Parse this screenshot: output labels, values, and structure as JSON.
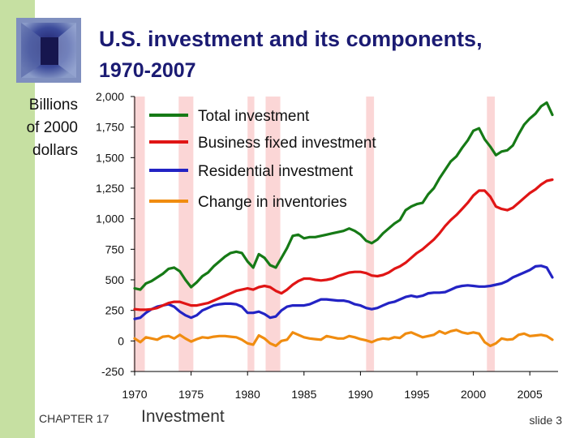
{
  "slide": {
    "title_line1": "U.S. investment and its components,",
    "title_line2": "1970-2007",
    "chapter": "CHAPTER 17",
    "topic": "Investment",
    "slide_number": "slide 3"
  },
  "colors": {
    "accent_bar": "#c6e0a2",
    "title": "#1b1b73",
    "recession": "#fbd6d6",
    "total": "#167a16",
    "business": "#e01515",
    "residential": "#2323c4",
    "inventories": "#f08c10"
  },
  "chart_data": {
    "type": "line",
    "title": "U.S. investment and its components, 1970-2007",
    "ylabel_lines": [
      "Billions",
      "of 2000",
      "dollars"
    ],
    "xlabel": "",
    "xlim": [
      1970,
      2007.5
    ],
    "ylim": [
      -250,
      2000
    ],
    "x_ticks": [
      1970,
      1975,
      1980,
      1985,
      1990,
      1995,
      2000,
      2005
    ],
    "x_tick_labels": [
      "1970",
      "1975",
      "1980",
      "1985",
      "1990",
      "1995",
      "2000",
      "2005"
    ],
    "y_ticks": [
      2000,
      1750,
      1500,
      1250,
      1000,
      750,
      500,
      250,
      0,
      -250
    ],
    "y_tick_labels": [
      "2,000",
      "1,750",
      "1,500",
      "1,250",
      "1,000",
      "750",
      "500",
      "250",
      "0",
      "-250"
    ],
    "recession_bands": [
      [
        1969.9,
        1970.9
      ],
      [
        1973.9,
        1975.2
      ],
      [
        1980.0,
        1980.6
      ],
      [
        1981.6,
        1982.9
      ],
      [
        1990.5,
        1991.2
      ],
      [
        2001.2,
        2001.9
      ]
    ],
    "legend": [
      "Total investment",
      "Business fixed investment",
      "Residential investment",
      "Change in inventories"
    ],
    "series": [
      {
        "name": "Total investment",
        "color": "#167a16",
        "x": [
          1970,
          1970.5,
          1971,
          1971.5,
          1972,
          1972.5,
          1973,
          1973.5,
          1974,
          1974.5,
          1975,
          1975.5,
          1976,
          1976.5,
          1977,
          1977.5,
          1978,
          1978.5,
          1979,
          1979.5,
          1980,
          1980.5,
          1981,
          1981.5,
          1982,
          1982.5,
          1983,
          1983.5,
          1984,
          1984.5,
          1985,
          1985.5,
          1986,
          1986.5,
          1987,
          1987.5,
          1988,
          1988.5,
          1989,
          1989.5,
          1990,
          1990.5,
          1991,
          1991.5,
          1992,
          1992.5,
          1993,
          1993.5,
          1994,
          1994.5,
          1995,
          1995.5,
          1996,
          1996.5,
          1997,
          1997.5,
          1998,
          1998.5,
          1999,
          1999.5,
          2000,
          2000.5,
          2001,
          2001.5,
          2002,
          2002.5,
          2003,
          2003.5,
          2004,
          2004.5,
          2005,
          2005.5,
          2006,
          2006.5,
          2007
        ],
        "values": [
          430,
          420,
          470,
          490,
          520,
          550,
          590,
          600,
          570,
          500,
          440,
          480,
          530,
          560,
          610,
          650,
          690,
          720,
          730,
          720,
          650,
          600,
          710,
          680,
          620,
          600,
          680,
          760,
          860,
          870,
          840,
          850,
          850,
          860,
          870,
          880,
          890,
          900,
          920,
          900,
          870,
          820,
          800,
          830,
          880,
          920,
          960,
          990,
          1070,
          1100,
          1120,
          1130,
          1200,
          1250,
          1330,
          1400,
          1470,
          1510,
          1580,
          1640,
          1720,
          1740,
          1650,
          1590,
          1520,
          1550,
          1560,
          1600,
          1690,
          1770,
          1820,
          1860,
          1920,
          1950,
          1850
        ]
      },
      {
        "name": "Business fixed investment",
        "color": "#e01515",
        "x": [
          1970,
          1970.5,
          1971,
          1971.5,
          1972,
          1972.5,
          1973,
          1973.5,
          1974,
          1974.5,
          1975,
          1975.5,
          1976,
          1976.5,
          1977,
          1977.5,
          1978,
          1978.5,
          1979,
          1979.5,
          1980,
          1980.5,
          1981,
          1981.5,
          1982,
          1982.5,
          1983,
          1983.5,
          1984,
          1984.5,
          1985,
          1985.5,
          1986,
          1986.5,
          1987,
          1987.5,
          1988,
          1988.5,
          1989,
          1989.5,
          1990,
          1990.5,
          1991,
          1991.5,
          1992,
          1992.5,
          1993,
          1993.5,
          1994,
          1994.5,
          1995,
          1995.5,
          1996,
          1996.5,
          1997,
          1997.5,
          1998,
          1998.5,
          1999,
          1999.5,
          2000,
          2000.5,
          2001,
          2001.5,
          2002,
          2002.5,
          2003,
          2003.5,
          2004,
          2004.5,
          2005,
          2005.5,
          2006,
          2006.5,
          2007
        ],
        "values": [
          260,
          255,
          255,
          260,
          270,
          290,
          310,
          320,
          320,
          305,
          290,
          290,
          300,
          310,
          330,
          350,
          370,
          390,
          410,
          420,
          430,
          420,
          440,
          450,
          440,
          410,
          390,
          420,
          460,
          490,
          510,
          510,
          500,
          495,
          500,
          510,
          530,
          545,
          560,
          565,
          565,
          555,
          535,
          530,
          540,
          560,
          590,
          610,
          640,
          680,
          720,
          750,
          790,
          830,
          880,
          940,
          990,
          1030,
          1080,
          1130,
          1190,
          1230,
          1230,
          1180,
          1100,
          1080,
          1070,
          1090,
          1130,
          1170,
          1210,
          1240,
          1280,
          1310,
          1320
        ]
      },
      {
        "name": "Residential investment",
        "color": "#2323c4",
        "x": [
          1970,
          1970.5,
          1971,
          1971.5,
          1972,
          1972.5,
          1973,
          1973.5,
          1974,
          1974.5,
          1975,
          1975.5,
          1976,
          1976.5,
          1977,
          1977.5,
          1978,
          1978.5,
          1979,
          1979.5,
          1980,
          1980.5,
          1981,
          1981.5,
          1982,
          1982.5,
          1983,
          1983.5,
          1984,
          1984.5,
          1985,
          1985.5,
          1986,
          1986.5,
          1987,
          1987.5,
          1988,
          1988.5,
          1989,
          1989.5,
          1990,
          1990.5,
          1991,
          1991.5,
          1992,
          1992.5,
          1993,
          1993.5,
          1994,
          1994.5,
          1995,
          1995.5,
          1996,
          1996.5,
          1997,
          1997.5,
          1998,
          1998.5,
          1999,
          1999.5,
          2000,
          2000.5,
          2001,
          2001.5,
          2002,
          2002.5,
          2003,
          2003.5,
          2004,
          2004.5,
          2005,
          2005.5,
          2006,
          2006.5,
          2007
        ],
        "values": [
          180,
          190,
          230,
          260,
          280,
          290,
          300,
          280,
          240,
          210,
          190,
          210,
          250,
          270,
          290,
          300,
          305,
          305,
          300,
          280,
          230,
          230,
          240,
          220,
          190,
          200,
          250,
          280,
          290,
          290,
          290,
          300,
          320,
          340,
          340,
          335,
          330,
          330,
          320,
          300,
          290,
          270,
          260,
          270,
          290,
          310,
          320,
          340,
          360,
          370,
          360,
          370,
          390,
          395,
          395,
          400,
          420,
          440,
          450,
          455,
          450,
          445,
          445,
          450,
          460,
          470,
          490,
          520,
          540,
          560,
          580,
          610,
          615,
          600,
          520
        ]
      },
      {
        "name": "Change in inventories",
        "color": "#f08c10",
        "x": [
          1970,
          1970.5,
          1971,
          1971.5,
          1972,
          1972.5,
          1973,
          1973.5,
          1974,
          1974.5,
          1975,
          1975.5,
          1976,
          1976.5,
          1977,
          1977.5,
          1978,
          1978.5,
          1979,
          1979.5,
          1980,
          1980.5,
          1981,
          1981.5,
          1982,
          1982.5,
          1983,
          1983.5,
          1984,
          1984.5,
          1985,
          1985.5,
          1986,
          1986.5,
          1987,
          1987.5,
          1988,
          1988.5,
          1989,
          1989.5,
          1990,
          1990.5,
          1991,
          1991.5,
          1992,
          1992.5,
          1993,
          1993.5,
          1994,
          1994.5,
          1995,
          1995.5,
          1996,
          1996.5,
          1997,
          1997.5,
          1998,
          1998.5,
          1999,
          1999.5,
          2000,
          2000.5,
          2001,
          2001.5,
          2002,
          2002.5,
          2003,
          2003.5,
          2004,
          2004.5,
          2005,
          2005.5,
          2006,
          2006.5,
          2007
        ],
        "values": [
          20,
          -10,
          30,
          20,
          10,
          35,
          40,
          20,
          50,
          20,
          -5,
          15,
          30,
          25,
          35,
          40,
          40,
          35,
          30,
          10,
          -20,
          -30,
          45,
          20,
          -20,
          -40,
          0,
          10,
          70,
          50,
          30,
          20,
          15,
          10,
          40,
          30,
          20,
          20,
          40,
          30,
          15,
          5,
          -10,
          10,
          20,
          15,
          30,
          25,
          60,
          70,
          50,
          30,
          40,
          50,
          80,
          60,
          80,
          90,
          70,
          60,
          70,
          60,
          -10,
          -40,
          -20,
          20,
          10,
          15,
          50,
          60,
          40,
          45,
          50,
          40,
          10
        ]
      }
    ]
  }
}
